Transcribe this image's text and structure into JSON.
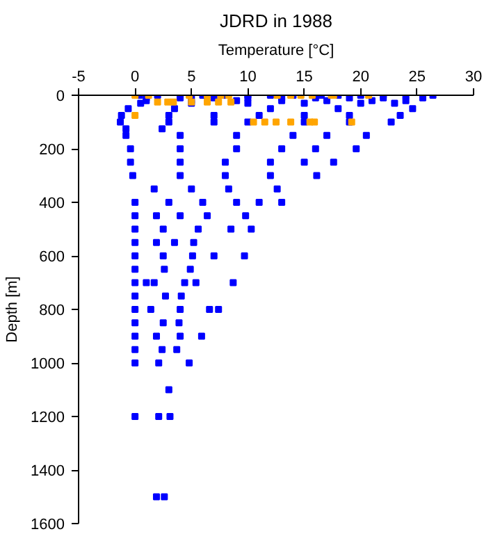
{
  "chart_data": {
    "type": "scatter",
    "title": "JDRD in 1988",
    "xlabel": "Temperature [°C]",
    "ylabel": "Depth [m]",
    "xlim": [
      -5,
      30
    ],
    "xticks": [
      -5,
      0,
      5,
      10,
      15,
      20,
      25,
      30
    ],
    "ylim": [
      1600,
      0
    ],
    "yticks": [
      0,
      200,
      400,
      600,
      800,
      1000,
      1200,
      1400,
      1600
    ],
    "grid": false,
    "marker": "square",
    "series": [
      {
        "color": "#0000ff",
        "x": [
          0.4,
          2,
          4,
          5,
          6,
          8,
          10,
          12,
          14,
          16.5,
          18,
          20,
          22,
          24,
          25.5,
          26.4,
          1,
          4,
          7,
          10,
          13,
          16,
          19,
          22,
          25.5,
          1,
          5,
          9,
          13,
          17,
          21,
          24,
          0.5,
          5,
          10,
          15,
          20,
          23,
          -0.6,
          3.5,
          12,
          18,
          24.6,
          -1.2,
          3,
          7,
          11,
          15,
          19,
          23.5,
          -1.3,
          3,
          7,
          10,
          15,
          19,
          22.7,
          -0.8,
          2.4,
          -0.8,
          4,
          9,
          14,
          17,
          20.5,
          -0.4,
          4,
          9,
          13,
          16,
          19.6,
          -0.4,
          4,
          8,
          12,
          15,
          17.6,
          -0.2,
          4,
          8,
          12,
          16.1,
          1.7,
          5,
          8.3,
          12.6,
          0,
          3,
          6,
          9,
          11,
          13,
          0,
          1.9,
          4,
          6.4,
          9.8,
          0,
          2.5,
          5.6,
          8.5,
          10.3,
          0,
          1.9,
          3.5,
          5.2,
          0,
          2.5,
          5.1,
          7,
          9.7,
          0,
          2.6,
          4.9,
          0,
          1,
          1.7,
          4.4,
          5.4,
          8.7,
          0,
          2.7,
          4.1,
          0,
          1.4,
          4,
          6.6,
          7.4,
          0,
          2.5,
          3.9,
          0,
          1.9,
          4,
          5.9,
          0,
          2.4,
          3.7,
          0,
          2.1,
          4.8,
          3,
          0,
          2.1,
          3.1,
          1.9,
          2.6
        ],
        "values": [
          0,
          0,
          0,
          0,
          0,
          0,
          0,
          0,
          0,
          0,
          0,
          0,
          0,
          0,
          0,
          0,
          10,
          10,
          10,
          10,
          10,
          10,
          10,
          10,
          10,
          20,
          20,
          20,
          20,
          20,
          20,
          20,
          30,
          30,
          30,
          30,
          30,
          30,
          50,
          50,
          50,
          50,
          50,
          75,
          75,
          75,
          75,
          75,
          75,
          75,
          100,
          100,
          100,
          100,
          100,
          100,
          100,
          125,
          125,
          150,
          150,
          150,
          150,
          150,
          150,
          200,
          200,
          200,
          200,
          200,
          200,
          250,
          250,
          250,
          250,
          250,
          250,
          300,
          300,
          300,
          300,
          300,
          350,
          350,
          350,
          350,
          400,
          400,
          400,
          400,
          400,
          400,
          450,
          450,
          450,
          450,
          450,
          500,
          500,
          500,
          500,
          500,
          550,
          550,
          550,
          550,
          600,
          600,
          600,
          600,
          600,
          650,
          650,
          650,
          700,
          700,
          700,
          700,
          700,
          700,
          750,
          750,
          750,
          800,
          800,
          800,
          800,
          800,
          850,
          850,
          850,
          900,
          900,
          900,
          900,
          950,
          950,
          950,
          1000,
          1000,
          1000,
          1100,
          1200,
          1200,
          1200,
          1500,
          1500
        ]
      },
      {
        "color": "#ffa500",
        "x": [
          0,
          1.2,
          4.8,
          6.4,
          7.6,
          8.3,
          12.6,
          13.8,
          14.7,
          15.7,
          17.4,
          17.6,
          20.7,
          2,
          2.9,
          3.4,
          5,
          6.4,
          7.4,
          8.5,
          0,
          10.5,
          11.5,
          12.5,
          13.8,
          15.5,
          15.9,
          19.2
        ],
        "values": [
          0,
          0,
          0,
          0,
          0,
          0,
          0,
          0,
          0,
          0,
          0,
          0,
          0,
          25,
          25,
          25,
          25,
          25,
          25,
          25,
          75,
          100,
          100,
          100,
          100,
          100,
          100,
          100
        ]
      }
    ]
  }
}
